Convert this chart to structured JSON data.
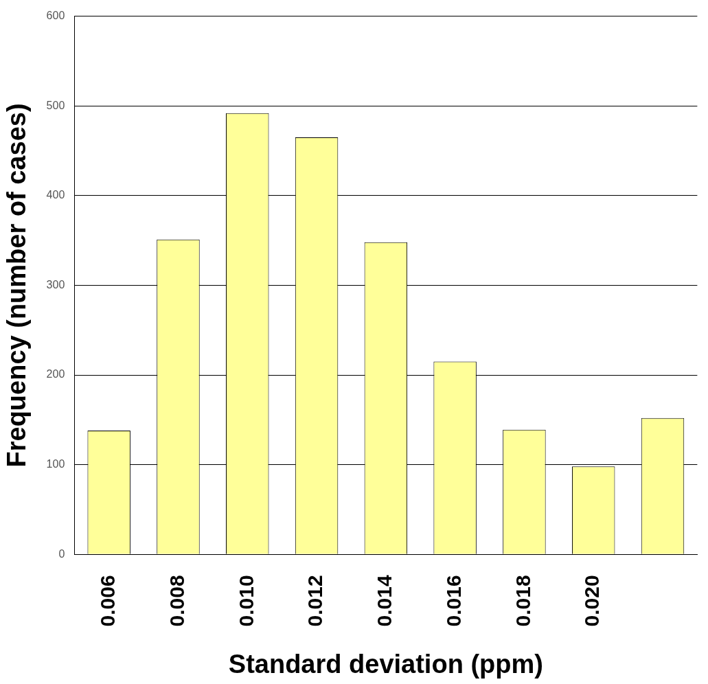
{
  "chart_data": {
    "type": "bar",
    "xlabel": "Standard deviation (ppm)",
    "ylabel": "Frequency (number of cases)",
    "categories": [
      "0.006",
      "0.008",
      "0.010",
      "0.012",
      "0.014",
      "0.016",
      "0.018",
      "0.020",
      null
    ],
    "values": [
      138,
      351,
      492,
      465,
      348,
      215,
      139,
      98,
      152
    ],
    "color": "#ffff99",
    "ylim": [
      0,
      600
    ],
    "yticks": [
      0,
      100,
      200,
      300,
      400,
      500,
      600
    ],
    "grid": "y",
    "legend": false
  }
}
